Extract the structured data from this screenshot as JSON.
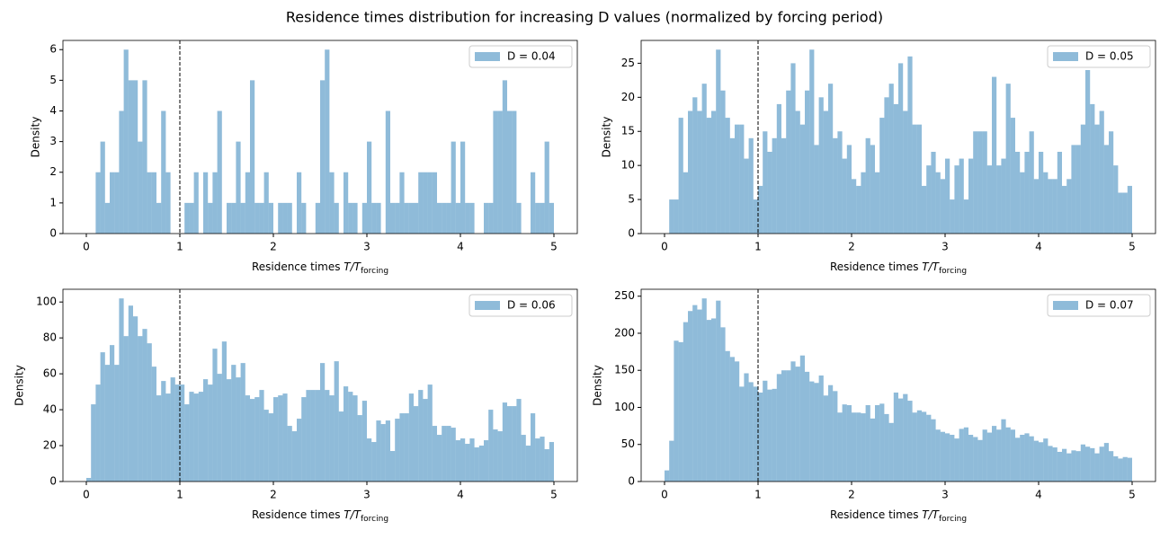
{
  "title": "Residence times distribution for increasing D values (normalized by forcing period)",
  "chart_data": [
    {
      "type": "histogram",
      "ylabel": "Density",
      "xlabel": "Residence times ",
      "xlabel_math": "T/T",
      "xlabel_sub": "forcing",
      "legend": "upper right",
      "vline": 1,
      "xlim": [
        -0.25,
        5.25
      ],
      "ylim": [
        0,
        6.3
      ],
      "xticks": [
        0,
        1,
        2,
        3,
        4,
        5
      ],
      "yticks": [
        0,
        1,
        2,
        3,
        4,
        5,
        6
      ],
      "bins": [
        0,
        0.05,
        0.1,
        0.15,
        0.2,
        0.25,
        0.3,
        0.35,
        0.4,
        0.45,
        0.5,
        0.55,
        0.6,
        0.65,
        0.7,
        0.75,
        0.8,
        0.85,
        0.9,
        0.95,
        1,
        1.05,
        1.1,
        1.15,
        1.2,
        1.25,
        1.3,
        1.35,
        1.4,
        1.45,
        1.5,
        1.55,
        1.6,
        1.65,
        1.7,
        1.75,
        1.8,
        1.85,
        1.9,
        1.95,
        2,
        2.05,
        2.1,
        2.15,
        2.2,
        2.25,
        2.3,
        2.35,
        2.4,
        2.45,
        2.5,
        2.55,
        2.6,
        2.65,
        2.7,
        2.75,
        2.8,
        2.85,
        2.9,
        2.95,
        3,
        3.05,
        3.1,
        3.15,
        3.2,
        3.25,
        3.3,
        3.35,
        3.4,
        3.45,
        3.5,
        3.55,
        3.6,
        3.65,
        3.7,
        3.75,
        3.8,
        3.85,
        3.9,
        3.95,
        4,
        4.05,
        4.1,
        4.15,
        4.2,
        4.25,
        4.3,
        4.35,
        4.4,
        4.45,
        4.5,
        4.55,
        4.6,
        4.65,
        4.7,
        4.75,
        4.8,
        4.85,
        4.9,
        4.95,
        5
      ],
      "series": [
        {
          "name": "D = 0.04",
          "color": "#1f77b4",
          "alpha": 0.5,
          "values": [
            0,
            0,
            2,
            3,
            1,
            2,
            2,
            4,
            6,
            5,
            5,
            3,
            5,
            2,
            2,
            1,
            4,
            2,
            0,
            0,
            0,
            1,
            1,
            2,
            0,
            2,
            1,
            2,
            4,
            0,
            1,
            1,
            3,
            1,
            2,
            5,
            1,
            1,
            2,
            1,
            0,
            1,
            1,
            1,
            0,
            2,
            1,
            0,
            0,
            1,
            5,
            6,
            2,
            1,
            0,
            2,
            1,
            1,
            0,
            1,
            3,
            1,
            1,
            0,
            4,
            1,
            1,
            2,
            1,
            1,
            1,
            2,
            2,
            2,
            2,
            1,
            1,
            1,
            3,
            1,
            3,
            1,
            1,
            0,
            0,
            1,
            1,
            4,
            4,
            5,
            4,
            4,
            1,
            0,
            0,
            2,
            1,
            1,
            3,
            1
          ]
        }
      ]
    },
    {
      "type": "histogram",
      "ylabel": "Density",
      "xlabel": "Residence times ",
      "xlabel_math": "T/T",
      "xlabel_sub": "forcing",
      "legend": "upper right",
      "vline": 1,
      "xlim": [
        -0.25,
        5.25
      ],
      "ylim": [
        0,
        28.35
      ],
      "xticks": [
        0,
        1,
        2,
        3,
        4,
        5
      ],
      "yticks": [
        0,
        5,
        10,
        15,
        20,
        25
      ],
      "bins": [
        0,
        0.05,
        0.1,
        0.15,
        0.2,
        0.25,
        0.3,
        0.35,
        0.4,
        0.45,
        0.5,
        0.55,
        0.6,
        0.65,
        0.7,
        0.75,
        0.8,
        0.85,
        0.9,
        0.95,
        1,
        1.05,
        1.1,
        1.15,
        1.2,
        1.25,
        1.3,
        1.35,
        1.4,
        1.45,
        1.5,
        1.55,
        1.6,
        1.65,
        1.7,
        1.75,
        1.8,
        1.85,
        1.9,
        1.95,
        2,
        2.05,
        2.1,
        2.15,
        2.2,
        2.25,
        2.3,
        2.35,
        2.4,
        2.45,
        2.5,
        2.55,
        2.6,
        2.65,
        2.7,
        2.75,
        2.8,
        2.85,
        2.9,
        2.95,
        3,
        3.05,
        3.1,
        3.15,
        3.2,
        3.25,
        3.3,
        3.35,
        3.4,
        3.45,
        3.5,
        3.55,
        3.6,
        3.65,
        3.7,
        3.75,
        3.8,
        3.85,
        3.9,
        3.95,
        4,
        4.05,
        4.1,
        4.15,
        4.2,
        4.25,
        4.3,
        4.35,
        4.4,
        4.45,
        4.5,
        4.55,
        4.6,
        4.65,
        4.7,
        4.75,
        4.8,
        4.85,
        4.9,
        4.95,
        5
      ],
      "series": [
        {
          "name": "D = 0.05",
          "color": "#1f77b4",
          "alpha": 0.5,
          "values": [
            0,
            5,
            5,
            17,
            9,
            18,
            20,
            18,
            22,
            17,
            18,
            27,
            21,
            17,
            14,
            16,
            16,
            11,
            14,
            5,
            7,
            15,
            12,
            14,
            19,
            14,
            21,
            25,
            18,
            16,
            21,
            27,
            13,
            20,
            18,
            22,
            14,
            15,
            11,
            13,
            8,
            7,
            9,
            14,
            13,
            9,
            17,
            20,
            22,
            19,
            25,
            18,
            26,
            16,
            16,
            7,
            10,
            12,
            9,
            8,
            11,
            5,
            10,
            11,
            5,
            11,
            15,
            15,
            15,
            10,
            23,
            10,
            11,
            22,
            17,
            12,
            9,
            12,
            15,
            8,
            12,
            9,
            8,
            8,
            12,
            7,
            8,
            13,
            13,
            16,
            24,
            19,
            16,
            18,
            13,
            15,
            10,
            6,
            6,
            7
          ]
        }
      ]
    },
    {
      "type": "histogram",
      "ylabel": "Density",
      "xlabel": "Residence times ",
      "xlabel_math": "T/T",
      "xlabel_sub": "forcing",
      "legend": "upper right",
      "vline": 1,
      "xlim": [
        -0.25,
        5.25
      ],
      "ylim": [
        0,
        107.1
      ],
      "xticks": [
        0,
        1,
        2,
        3,
        4,
        5
      ],
      "yticks": [
        0,
        20,
        40,
        60,
        80,
        100
      ],
      "bins": [
        0,
        0.05,
        0.1,
        0.15,
        0.2,
        0.25,
        0.3,
        0.35,
        0.4,
        0.45,
        0.5,
        0.55,
        0.6,
        0.65,
        0.7,
        0.75,
        0.8,
        0.85,
        0.9,
        0.95,
        1,
        1.05,
        1.1,
        1.15,
        1.2,
        1.25,
        1.3,
        1.35,
        1.4,
        1.45,
        1.5,
        1.55,
        1.6,
        1.65,
        1.7,
        1.75,
        1.8,
        1.85,
        1.9,
        1.95,
        2,
        2.05,
        2.1,
        2.15,
        2.2,
        2.25,
        2.3,
        2.35,
        2.4,
        2.45,
        2.5,
        2.55,
        2.6,
        2.65,
        2.7,
        2.75,
        2.8,
        2.85,
        2.9,
        2.95,
        3,
        3.05,
        3.1,
        3.15,
        3.2,
        3.25,
        3.3,
        3.35,
        3.4,
        3.45,
        3.5,
        3.55,
        3.6,
        3.65,
        3.7,
        3.75,
        3.8,
        3.85,
        3.9,
        3.95,
        4,
        4.05,
        4.1,
        4.15,
        4.2,
        4.25,
        4.3,
        4.35,
        4.4,
        4.45,
        4.5,
        4.55,
        4.6,
        4.65,
        4.7,
        4.75,
        4.8,
        4.85,
        4.9,
        4.95,
        5
      ],
      "series": [
        {
          "name": "D = 0.06",
          "color": "#1f77b4",
          "alpha": 0.5,
          "values": [
            2,
            43,
            54,
            72,
            65,
            76,
            65,
            102,
            81,
            98,
            92,
            81,
            85,
            77,
            64,
            48,
            56,
            49,
            58,
            54,
            54,
            43,
            50,
            49,
            50,
            57,
            54,
            74,
            60,
            78,
            57,
            65,
            58,
            66,
            48,
            46,
            47,
            51,
            40,
            38,
            47,
            48,
            49,
            31,
            28,
            35,
            47,
            51,
            51,
            51,
            66,
            51,
            48,
            67,
            39,
            53,
            50,
            48,
            37,
            45,
            24,
            22,
            34,
            32,
            34,
            17,
            35,
            38,
            38,
            49,
            42,
            51,
            46,
            54,
            31,
            26,
            31,
            31,
            30,
            23,
            24,
            21,
            24,
            19,
            20,
            23,
            40,
            29,
            28,
            44,
            42,
            42,
            46,
            26,
            20,
            38,
            24,
            25,
            18,
            22
          ]
        }
      ]
    },
    {
      "type": "histogram",
      "ylabel": "Density",
      "xlabel": "Residence times ",
      "xlabel_math": "T/T",
      "xlabel_sub": "forcing",
      "legend": "upper right",
      "vline": 1,
      "xlim": [
        -0.25,
        5.25
      ],
      "ylim": [
        0,
        259.35
      ],
      "xticks": [
        0,
        1,
        2,
        3,
        4,
        5
      ],
      "yticks": [
        0,
        50,
        100,
        150,
        200,
        250
      ],
      "bins": [
        0,
        0.05,
        0.1,
        0.15,
        0.2,
        0.25,
        0.3,
        0.35,
        0.4,
        0.45,
        0.5,
        0.55,
        0.6,
        0.65,
        0.7,
        0.75,
        0.8,
        0.85,
        0.9,
        0.95,
        1,
        1.05,
        1.1,
        1.15,
        1.2,
        1.25,
        1.3,
        1.35,
        1.4,
        1.45,
        1.5,
        1.55,
        1.6,
        1.65,
        1.7,
        1.75,
        1.8,
        1.85,
        1.9,
        1.95,
        2,
        2.05,
        2.1,
        2.15,
        2.2,
        2.25,
        2.3,
        2.35,
        2.4,
        2.45,
        2.5,
        2.55,
        2.6,
        2.65,
        2.7,
        2.75,
        2.8,
        2.85,
        2.9,
        2.95,
        3,
        3.05,
        3.1,
        3.15,
        3.2,
        3.25,
        3.3,
        3.35,
        3.4,
        3.45,
        3.5,
        3.55,
        3.6,
        3.65,
        3.7,
        3.75,
        3.8,
        3.85,
        3.9,
        3.95,
        4,
        4.05,
        4.1,
        4.15,
        4.2,
        4.25,
        4.3,
        4.35,
        4.4,
        4.45,
        4.5,
        4.55,
        4.6,
        4.65,
        4.7,
        4.75,
        4.8,
        4.85,
        4.9,
        4.95,
        5
      ],
      "series": [
        {
          "name": "D = 0.07",
          "color": "#1f77b4",
          "alpha": 0.5,
          "values": [
            15,
            55,
            190,
            188,
            215,
            230,
            238,
            232,
            247,
            218,
            220,
            244,
            208,
            176,
            168,
            162,
            128,
            146,
            134,
            128,
            120,
            136,
            124,
            125,
            145,
            150,
            150,
            162,
            155,
            170,
            148,
            135,
            133,
            143,
            116,
            130,
            122,
            93,
            104,
            103,
            93,
            93,
            92,
            103,
            85,
            103,
            105,
            91,
            79,
            120,
            112,
            118,
            109,
            93,
            96,
            94,
            90,
            84,
            70,
            67,
            65,
            63,
            58,
            71,
            73,
            63,
            60,
            56,
            70,
            66,
            75,
            70,
            84,
            73,
            70,
            59,
            63,
            65,
            61,
            55,
            53,
            58,
            48,
            46,
            40,
            44,
            38,
            42,
            41,
            50,
            47,
            45,
            38,
            47,
            52,
            41,
            34,
            31,
            33,
            32
          ]
        }
      ]
    }
  ]
}
